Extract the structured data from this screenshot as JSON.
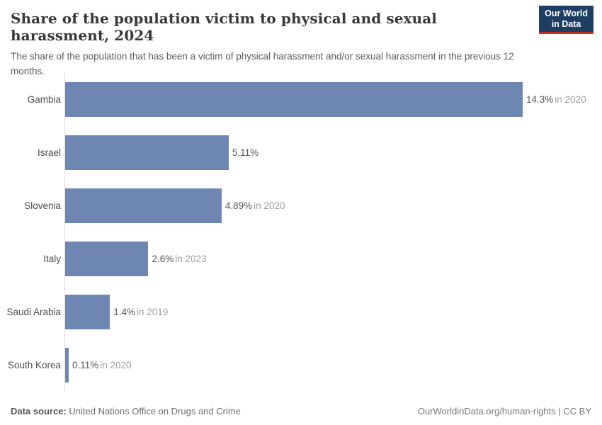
{
  "header": {
    "title": "Share of the population victim to physical and sexual harassment, 2024",
    "subtitle": "The share of the population that has been a victim of physical harassment and/or sexual harassment in the previous 12 months.",
    "logo": {
      "line1": "Our World",
      "line2": "in Data"
    }
  },
  "chart_data": {
    "type": "bar",
    "orientation": "horizontal",
    "title": "Share of the population victim to physical and sexual harassment, 2024",
    "categories": [
      "Gambia",
      "Israel",
      "Slovenia",
      "Italy",
      "Saudi Arabia",
      "South Korea"
    ],
    "values": [
      14.3,
      5.11,
      4.89,
      2.6,
      1.4,
      0.11
    ],
    "xlim": [
      0,
      14.3
    ],
    "grid": false,
    "legend": "none",
    "bar_color": "#6e87b2",
    "axis_color": "#dedede",
    "rows": [
      {
        "country": "Gambia",
        "value": 14.3,
        "value_label": "14.3%",
        "year_label": "in 2020"
      },
      {
        "country": "Israel",
        "value": 5.11,
        "value_label": "5.11%",
        "year_label": ""
      },
      {
        "country": "Slovenia",
        "value": 4.89,
        "value_label": "4.89%",
        "year_label": "in 2020"
      },
      {
        "country": "Italy",
        "value": 2.6,
        "value_label": "2.6%",
        "year_label": "in 2023"
      },
      {
        "country": "Saudi Arabia",
        "value": 1.4,
        "value_label": "1.4%",
        "year_label": "in 2019"
      },
      {
        "country": "South Korea",
        "value": 0.11,
        "value_label": "0.11%",
        "year_label": "in 2020"
      }
    ]
  },
  "footer": {
    "source_label": "Data source:",
    "source_value": "United Nations Office on Drugs and Crime",
    "credit": "OurWorldinData.org/human-rights | CC BY"
  },
  "colors": {
    "bar": "#6e87b2",
    "logo_bg": "#1d3d63",
    "logo_underline": "#c5301f",
    "title_text": "#383838",
    "subtitle_text": "#5b5b5b",
    "value_text": "#555555",
    "year_text": "#9c9c9c"
  }
}
